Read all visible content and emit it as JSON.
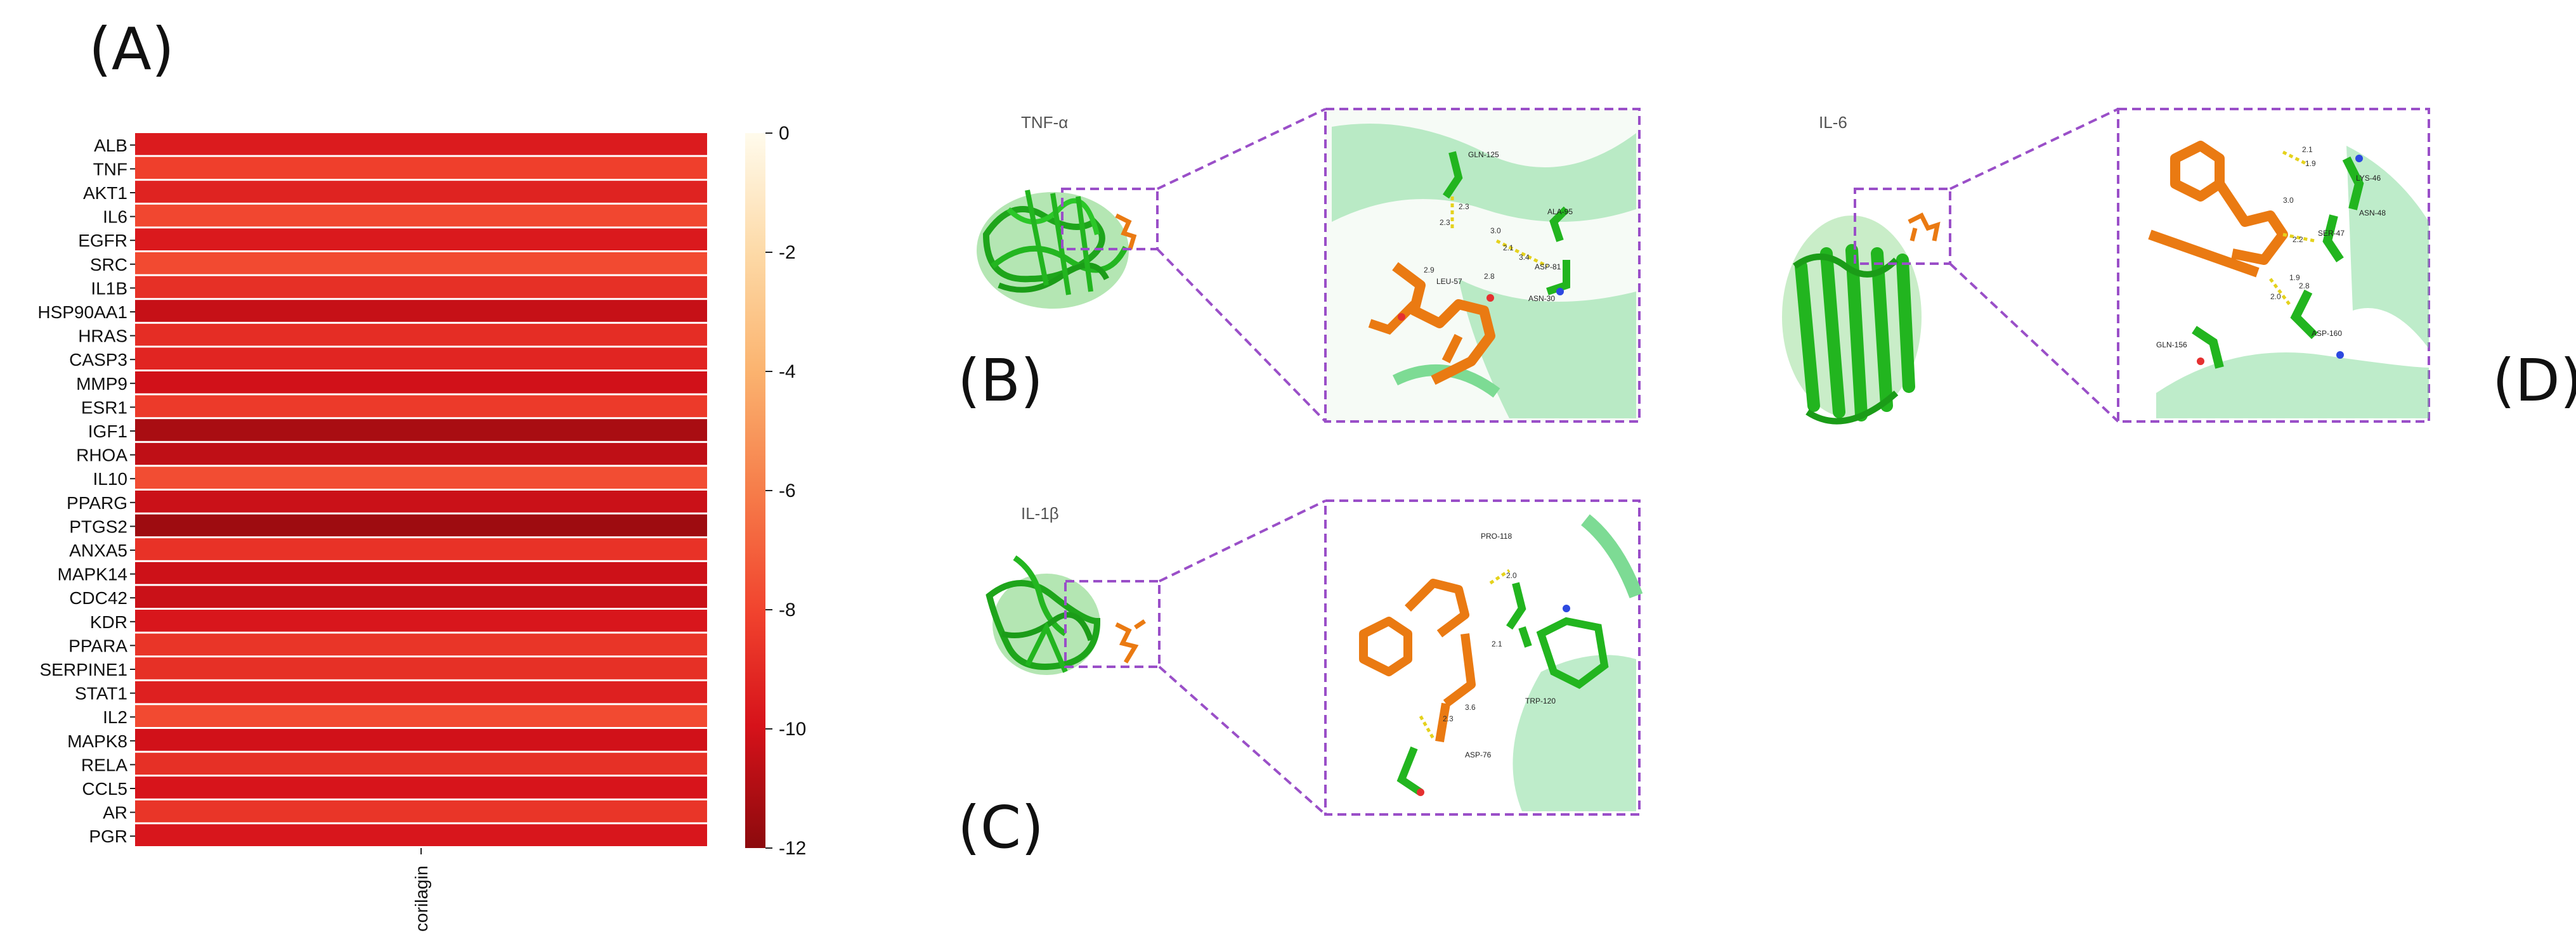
{
  "panels": {
    "a": "(A)",
    "b": "(B)",
    "c": "(C)",
    "d": "(D)"
  },
  "proteins": {
    "tnf": "TNF-α",
    "il1b": "IL-1β",
    "il6": "IL-6"
  },
  "residues": {
    "tnf": [
      "GLN-125",
      "ALA-95",
      "LEU-57",
      "ASP-81",
      "ASN-30"
    ],
    "il1b": [
      "PRO-118",
      "TRP-120",
      "ASP-76"
    ],
    "il6": [
      "LYS-46",
      "ASN-48",
      "SER-47",
      "ASP-160",
      "GLN-156"
    ]
  },
  "distances": {
    "tnf": [
      "2.3",
      "2.3",
      "3.0",
      "2.1",
      "3.4",
      "2.9",
      "2.8"
    ],
    "il1b": [
      "2.0",
      "2.1",
      "2.3",
      "3.6"
    ],
    "il6": [
      "2.1",
      "1.9",
      "3.0",
      "2.2",
      "2.0",
      "1.9",
      "2.8"
    ]
  },
  "colors": {
    "protein_green": "#22b51f",
    "ligand_orange": "#ea7a12",
    "dash_purple": "#9a4fc8",
    "hbond_yellow": "#e5d21d"
  },
  "chart_data": {
    "type": "heatmap",
    "rows": [
      "ALB",
      "TNF",
      "AKT1",
      "IL6",
      "EGFR",
      "SRC",
      "IL1B",
      "HSP90AA1",
      "HRAS",
      "CASP3",
      "MMP9",
      "ESR1",
      "IGF1",
      "RHOA",
      "IL10",
      "PPARG",
      "PTGS2",
      "ANXA5",
      "MAPK14",
      "CDC42",
      "KDR",
      "PPARA",
      "SERPINE1",
      "STAT1",
      "IL2",
      "MAPK8",
      "RELA",
      "CCL5",
      "AR",
      "PGR"
    ],
    "columns": [
      "corilagin"
    ],
    "values": [
      -9.6,
      -8.2,
      -9.3,
      -7.9,
      -9.7,
      -7.8,
      -8.8,
      -10.4,
      -8.9,
      -9.2,
      -10.1,
      -8.4,
      -11.2,
      -10.6,
      -7.7,
      -10.3,
      -11.5,
      -8.7,
      -10.2,
      -10.3,
      -9.8,
      -8.6,
      -8.8,
      -9.4,
      -7.8,
      -10.1,
      -8.8,
      -9.9,
      -8.6,
      -9.8
    ],
    "colorbar": {
      "ticks": [
        "0",
        "-2",
        "-4",
        "-6",
        "-8",
        "-10",
        "-12"
      ],
      "range": [
        -12,
        0
      ],
      "colormap": "OrRd reversed (dark red = -12, cream = 0)"
    },
    "xlabel": "",
    "ylabel": "",
    "title": ""
  }
}
